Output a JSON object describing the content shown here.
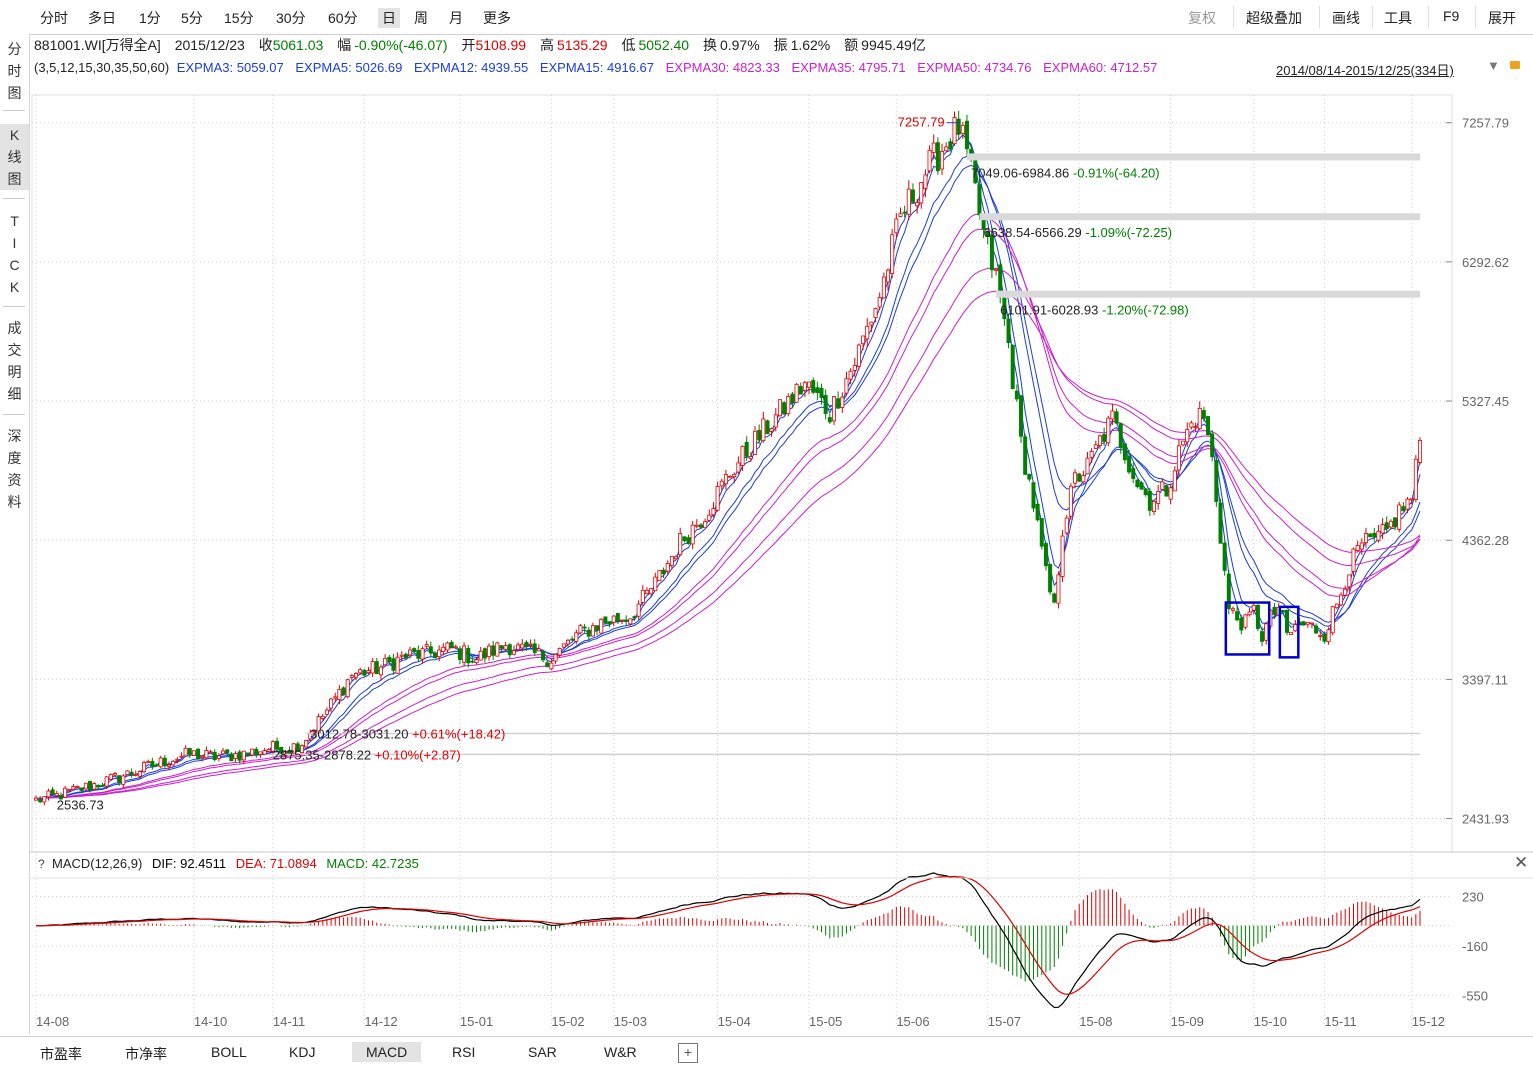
{
  "toolbar": {
    "timeframes": [
      "分时",
      "多日",
      "1分",
      "5分",
      "15分",
      "30分",
      "60分",
      "日",
      "周",
      "月",
      "更多"
    ],
    "selected": "日",
    "right_items": [
      "复权",
      "超级叠加",
      "画线",
      "工具",
      "F9",
      "展开"
    ]
  },
  "left_nav": {
    "groups": [
      {
        "label": "分时图",
        "chars": [
          "分",
          "时",
          "图"
        ]
      },
      {
        "label": "K线图",
        "chars": [
          "K",
          "线",
          "图"
        ]
      },
      {
        "label": "TICK",
        "chars": [
          "T",
          "I",
          "C",
          "K"
        ]
      },
      {
        "label": "成交明细",
        "chars": [
          "成",
          "交",
          "明",
          "细"
        ]
      },
      {
        "label": "深度资料",
        "chars": [
          "深",
          "度",
          "资",
          "料"
        ]
      }
    ],
    "selected": "K线图"
  },
  "info": {
    "code": "881001.WI[万得全A]",
    "date": "2015/12/23",
    "close_label": "收",
    "close": "5061.03",
    "change_label": "幅",
    "change": "-0.90%(-46.07)",
    "open_label": "开",
    "open": "5108.99",
    "high_label": "高",
    "high": "5135.29",
    "low_label": "低",
    "low": "5052.40",
    "turnover_label": "换",
    "turnover": "0.97%",
    "amplitude_label": "振",
    "amplitude": "1.62%",
    "amount_label": "额",
    "amount": "9945.49亿"
  },
  "ema": {
    "params": "(3,5,12,15,30,35,50,60)",
    "items": [
      {
        "label": "EXPMA3: 5059.07",
        "color": "#1a3ddb"
      },
      {
        "label": "EXPMA5: 5026.69",
        "color": "#1a3ddb"
      },
      {
        "label": "EXPMA12: 4939.55",
        "color": "#1a3ddb"
      },
      {
        "label": "EXPMA15: 4916.67",
        "color": "#1a3ddb"
      },
      {
        "label": "EXPMA30: 4823.33",
        "color": "#cc1fcc"
      },
      {
        "label": "EXPMA35: 4795.71",
        "color": "#cc1fcc"
      },
      {
        "label": "EXPMA50: 4734.76",
        "color": "#cc1fcc"
      },
      {
        "label": "EXPMA60: 4712.57",
        "color": "#cc1fcc"
      }
    ]
  },
  "range_label": "2014/08/14-2015/12/25(334日)",
  "chart_data": {
    "type": "candlestick",
    "ylim": [
      2200,
      7450
    ],
    "y_ticks": [
      {
        "value": 7257.79,
        "label": "7257.79"
      },
      {
        "value": 6292.62,
        "label": "6292.62"
      },
      {
        "value": 5327.45,
        "label": "5327.45"
      },
      {
        "value": 4362.28,
        "label": "4362.28"
      },
      {
        "value": 3397.11,
        "label": "3397.11"
      },
      {
        "value": 2431.93,
        "label": "2431.93"
      }
    ],
    "x_ticks": [
      {
        "label": "14-08",
        "i": 0
      },
      {
        "label": "14-10",
        "i": 38
      },
      {
        "label": "14-11",
        "i": 57
      },
      {
        "label": "14-12",
        "i": 79
      },
      {
        "label": "15-01",
        "i": 102
      },
      {
        "label": "15-02",
        "i": 124
      },
      {
        "label": "15-03",
        "i": 139
      },
      {
        "label": "15-04",
        "i": 164
      },
      {
        "label": "15-05",
        "i": 186
      },
      {
        "label": "15-06",
        "i": 207
      },
      {
        "label": "15-07",
        "i": 229
      },
      {
        "label": "15-08",
        "i": 251
      },
      {
        "label": "15-09",
        "i": 273
      },
      {
        "label": "15-10",
        "i": 293
      },
      {
        "label": "15-11",
        "i": 310
      },
      {
        "label": "15-12",
        "i": 331
      }
    ],
    "key_points": [
      {
        "i": 0,
        "close": 2560
      },
      {
        "i": 5,
        "close": 2590
      },
      {
        "i": 12,
        "close": 2650
      },
      {
        "i": 20,
        "close": 2720
      },
      {
        "i": 26,
        "close": 2780
      },
      {
        "i": 31,
        "close": 2830
      },
      {
        "i": 37,
        "close": 2880
      },
      {
        "i": 43,
        "close": 2860
      },
      {
        "i": 50,
        "close": 2880
      },
      {
        "i": 56,
        "close": 2920
      },
      {
        "i": 61,
        "close": 2920
      },
      {
        "i": 64,
        "close": 2960
      },
      {
        "i": 70,
        "close": 3180
      },
      {
        "i": 76,
        "close": 3430
      },
      {
        "i": 83,
        "close": 3480
      },
      {
        "i": 89,
        "close": 3560
      },
      {
        "i": 95,
        "close": 3580
      },
      {
        "i": 100,
        "close": 3610
      },
      {
        "i": 106,
        "close": 3540
      },
      {
        "i": 113,
        "close": 3640
      },
      {
        "i": 119,
        "close": 3580
      },
      {
        "i": 124,
        "close": 3540
      },
      {
        "i": 130,
        "close": 3700
      },
      {
        "i": 136,
        "close": 3790
      },
      {
        "i": 143,
        "close": 3840
      },
      {
        "i": 149,
        "close": 4060
      },
      {
        "i": 155,
        "close": 4350
      },
      {
        "i": 161,
        "close": 4550
      },
      {
        "i": 167,
        "close": 4830
      },
      {
        "i": 173,
        "close": 5050
      },
      {
        "i": 179,
        "close": 5250
      },
      {
        "i": 185,
        "close": 5450
      },
      {
        "i": 191,
        "close": 5250
      },
      {
        "i": 197,
        "close": 5600
      },
      {
        "i": 203,
        "close": 6060
      },
      {
        "i": 208,
        "close": 6600
      },
      {
        "i": 214,
        "close": 6920
      },
      {
        "i": 219,
        "close": 7120
      },
      {
        "i": 222,
        "close": 7230
      },
      {
        "i": 225,
        "close": 6920
      },
      {
        "i": 228,
        "close": 6480
      },
      {
        "i": 231,
        "close": 6180
      },
      {
        "i": 234,
        "close": 5720
      },
      {
        "i": 237,
        "close": 5040
      },
      {
        "i": 240,
        "close": 4620
      },
      {
        "i": 243,
        "close": 4120
      },
      {
        "i": 245,
        "close": 3880
      },
      {
        "i": 247,
        "close": 4450
      },
      {
        "i": 250,
        "close": 4780
      },
      {
        "i": 253,
        "close": 4870
      },
      {
        "i": 256,
        "close": 5050
      },
      {
        "i": 259,
        "close": 5200
      },
      {
        "i": 262,
        "close": 4980
      },
      {
        "i": 265,
        "close": 4760
      },
      {
        "i": 268,
        "close": 4640
      },
      {
        "i": 272,
        "close": 4720
      },
      {
        "i": 276,
        "close": 5050
      },
      {
        "i": 279,
        "close": 5220
      },
      {
        "i": 281,
        "close": 5220
      },
      {
        "i": 283,
        "close": 4920
      },
      {
        "i": 285,
        "close": 4400
      },
      {
        "i": 287,
        "close": 3880
      },
      {
        "i": 289,
        "close": 3820
      },
      {
        "i": 291,
        "close": 3780
      },
      {
        "i": 293,
        "close": 3870
      },
      {
        "i": 295,
        "close": 3700
      },
      {
        "i": 297,
        "close": 3820
      },
      {
        "i": 299,
        "close": 3900
      },
      {
        "i": 301,
        "close": 3700
      },
      {
        "i": 304,
        "close": 3780
      },
      {
        "i": 307,
        "close": 3760
      },
      {
        "i": 310,
        "close": 3720
      },
      {
        "i": 313,
        "close": 3920
      },
      {
        "i": 316,
        "close": 4180
      },
      {
        "i": 319,
        "close": 4330
      },
      {
        "i": 322,
        "close": 4350
      },
      {
        "i": 325,
        "close": 4420
      },
      {
        "i": 328,
        "close": 4560
      },
      {
        "i": 331,
        "close": 4650
      },
      {
        "i": 333,
        "close": 5061
      }
    ],
    "annotations": [
      {
        "text": "7257.79",
        "kind": "high",
        "price": 7257.79
      },
      {
        "text": "7049.06-6984.86",
        "pct": "-0.91%(-64.20)",
        "kind": "gap-down",
        "price_hi": 7049.06,
        "price_lo": 6984.86
      },
      {
        "text": "6638.54-6566.29",
        "pct": "-1.09%(-72.25)",
        "kind": "gap-down",
        "price_hi": 6638.54,
        "price_lo": 6566.29
      },
      {
        "text": "6101.91-6028.93",
        "pct": "-1.20%(-72.98)",
        "kind": "gap-down",
        "price_hi": 6101.91,
        "price_lo": 6028.93
      },
      {
        "text": "3012.78-3031.20",
        "pct": "+0.61%(+18.42)",
        "kind": "gap-up",
        "price_hi": 3031.2,
        "price_lo": 3012.78
      },
      {
        "text": "2875.35-2878.22",
        "pct": "+0.10%(+2.87)",
        "kind": "gap-up",
        "price_hi": 2878.22,
        "price_lo": 2875.35
      },
      {
        "text": "2536.73",
        "kind": "low",
        "price": 2536.73
      }
    ],
    "highlight_boxes": [
      {
        "from": 287,
        "to": 296,
        "price_hi": 3930,
        "price_lo": 3570
      },
      {
        "from": 300,
        "to": 303,
        "price_hi": 3900,
        "price_lo": 3550
      }
    ],
    "ema_periods": [
      3,
      5,
      12,
      15,
      30,
      35,
      50,
      60
    ],
    "up_color": "#e00000",
    "down_color": "#008000",
    "ema_short_color": "#1a3ddb",
    "ema_long_color": "#cc1fcc"
  },
  "macd": {
    "title": "MACD(12,26,9)",
    "dif_label": "DIF: 92.4511",
    "dea_label": "DEA: 71.0894",
    "macd_label": "MACD: 42.7235",
    "y_ticks": [
      "230",
      "-160",
      "-550"
    ],
    "ylim": [
      -650,
      360
    ],
    "dif_color": "#000000",
    "dea_color": "#e00000"
  },
  "bottom_tabs": [
    "市盈率",
    "市净率",
    "BOLL",
    "KDJ",
    "MACD",
    "RSI",
    "SAR",
    "W&R"
  ],
  "bottom_selected": "MACD"
}
